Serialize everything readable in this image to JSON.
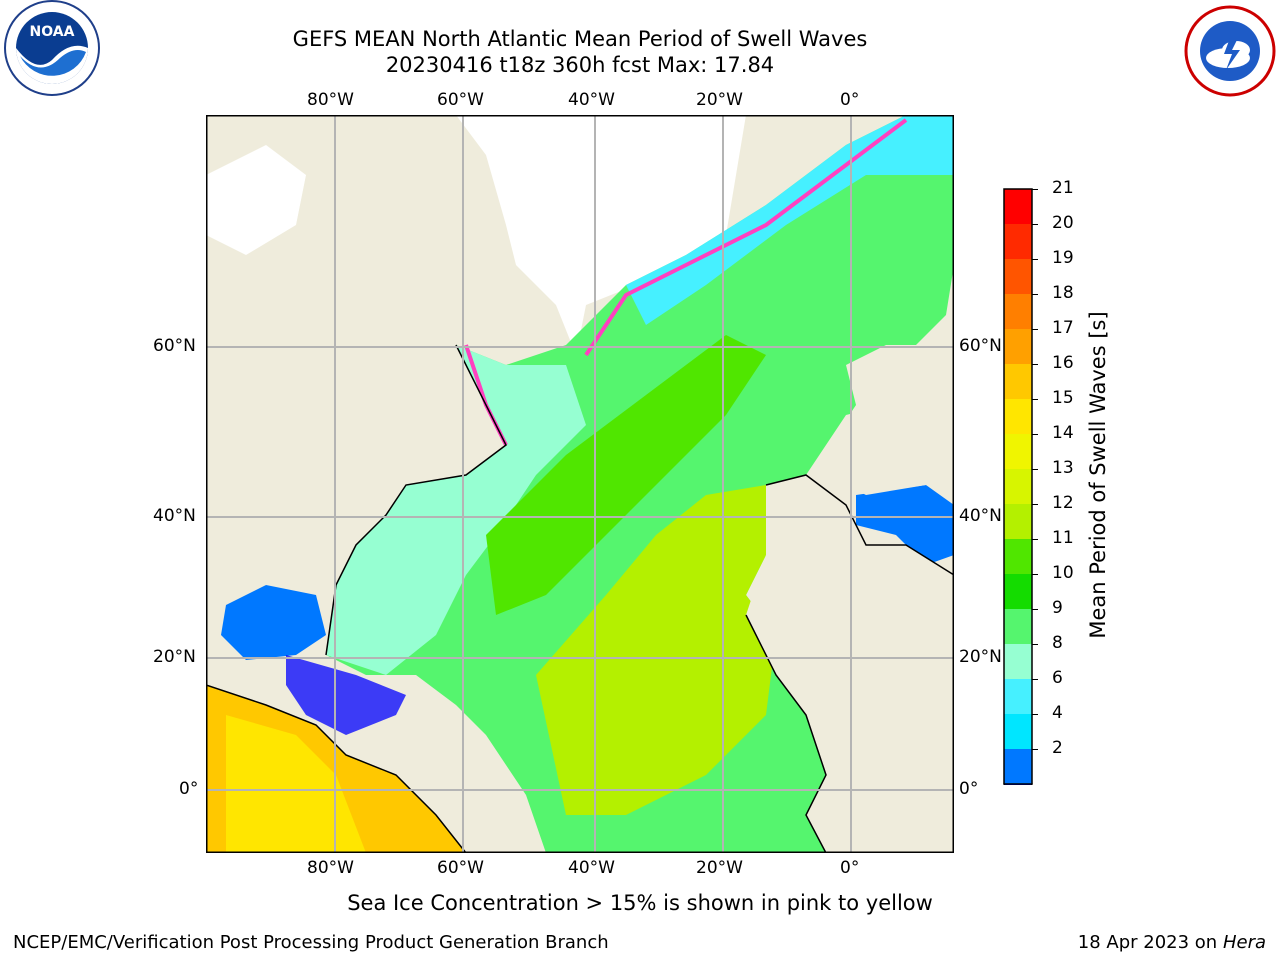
{
  "header": {
    "title_line1": "GEFS MEAN North Atlantic Mean Period of Swell Waves",
    "title_line2": "20230416 t18z 360h fcst   Max: 17.84"
  },
  "logos": {
    "noaa": {
      "text": "NOAA",
      "ring_text": "NATIONAL OCEANIC AND ATMOSPHERIC ADMINISTRATION · U.S. DEPARTMENT OF COMMERCE"
    },
    "nws": {
      "ring_text": "NATIONAL WEATHER SERVICE"
    }
  },
  "map": {
    "lon_labels": [
      "80°W",
      "60°W",
      "40°W",
      "20°W",
      "0°"
    ],
    "lat_labels": [
      "60°N",
      "40°N",
      "20°N",
      "0°"
    ]
  },
  "colorbar": {
    "label": "Mean Period of Swell Waves [s]",
    "ticks": [
      "21",
      "20",
      "19",
      "18",
      "17",
      "16",
      "15",
      "14",
      "13",
      "12",
      "11",
      "10",
      "9",
      "8",
      "6",
      "4",
      "2"
    ],
    "colors": [
      "#ff0000",
      "#ff2a00",
      "#ff5500",
      "#ff7f00",
      "#ffa000",
      "#ffc800",
      "#ffe600",
      "#f0f500",
      "#d7f500",
      "#b4f000",
      "#50e600",
      "#14dc00",
      "#55f56e",
      "#96ffd2",
      "#46f0ff",
      "#00e6ff",
      "#0078ff"
    ],
    "under_color": "#0000ff"
  },
  "footer": {
    "ice_note": "Sea Ice Concentration > 15% is shown in pink to yellow",
    "credit": "NCEP/EMC/Verification Post Processing Product Generation Branch",
    "date": "18 Apr 2023 on ",
    "host": "Hera"
  }
}
